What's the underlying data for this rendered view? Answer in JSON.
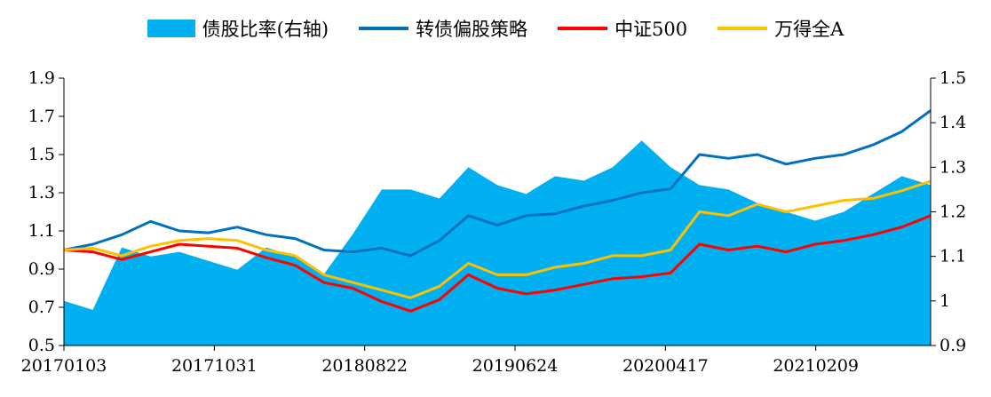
{
  "chart_data": {
    "type": "line",
    "title": "",
    "xlabel": "",
    "ylabel": "",
    "y2label": "",
    "grid": false,
    "legend_position": "top-center",
    "ylim": [
      0.5,
      1.9
    ],
    "y2lim": [
      0.9,
      1.5
    ],
    "yticks": [
      "0.5",
      "0.7",
      "0.9",
      "1.1",
      "1.3",
      "1.5",
      "1.7",
      "1.9"
    ],
    "y2ticks": [
      "0.9",
      "1",
      "1.1",
      "1.2",
      "1.3",
      "1.4",
      "1.5"
    ],
    "xtick_labels": [
      "20170103",
      "20171031",
      "20180822",
      "20190624",
      "20200417",
      "20210209"
    ],
    "x": [
      "20170103",
      "20170301",
      "20170501",
      "20170701",
      "20170901",
      "20171031",
      "20180101",
      "20180301",
      "20180501",
      "20180701",
      "20180822",
      "20181101",
      "20190101",
      "20190301",
      "20190501",
      "20190624",
      "20190901",
      "20191101",
      "20200101",
      "20200301",
      "20200417",
      "20200701",
      "20200901",
      "20201101",
      "20210101",
      "20210209",
      "20210501",
      "20210701",
      "20210901",
      "20211015",
      "20211201"
    ],
    "series": [
      {
        "name": "债股比率(右轴)",
        "kind": "area",
        "axis": "right",
        "color": "#00B0F0",
        "values": [
          1.0,
          0.98,
          1.12,
          1.1,
          1.11,
          1.09,
          1.07,
          1.12,
          1.1,
          1.06,
          1.15,
          1.25,
          1.25,
          1.23,
          1.3,
          1.26,
          1.24,
          1.28,
          1.27,
          1.3,
          1.36,
          1.3,
          1.26,
          1.25,
          1.22,
          1.2,
          1.18,
          1.2,
          1.24,
          1.28,
          1.26
        ]
      },
      {
        "name": "转债偏股策略",
        "kind": "line",
        "axis": "left",
        "color": "#0070C0",
        "values": [
          1.0,
          1.03,
          1.08,
          1.15,
          1.1,
          1.09,
          1.12,
          1.08,
          1.06,
          1.0,
          0.99,
          1.01,
          0.97,
          1.05,
          1.18,
          1.13,
          1.18,
          1.19,
          1.23,
          1.26,
          1.3,
          1.32,
          1.5,
          1.48,
          1.5,
          1.45,
          1.48,
          1.5,
          1.55,
          1.62,
          1.73
        ]
      },
      {
        "name": "中证500",
        "kind": "line",
        "axis": "left",
        "color": "#FF0000",
        "values": [
          1.0,
          0.99,
          0.95,
          0.99,
          1.03,
          1.02,
          1.01,
          0.96,
          0.92,
          0.83,
          0.8,
          0.73,
          0.68,
          0.74,
          0.87,
          0.8,
          0.77,
          0.79,
          0.82,
          0.85,
          0.86,
          0.88,
          1.03,
          1.0,
          1.02,
          0.99,
          1.03,
          1.05,
          1.08,
          1.12,
          1.18
        ]
      },
      {
        "name": "万得全A",
        "kind": "line",
        "axis": "left",
        "color": "#FFC000",
        "values": [
          1.0,
          1.01,
          0.97,
          1.02,
          1.05,
          1.06,
          1.05,
          1.0,
          0.97,
          0.87,
          0.83,
          0.79,
          0.75,
          0.81,
          0.93,
          0.87,
          0.87,
          0.91,
          0.93,
          0.97,
          0.97,
          1.0,
          1.2,
          1.18,
          1.24,
          1.2,
          1.23,
          1.26,
          1.27,
          1.31,
          1.36
        ]
      }
    ]
  }
}
